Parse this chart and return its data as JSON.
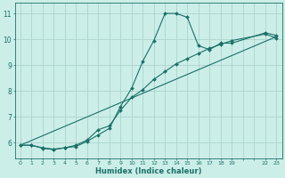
{
  "xlabel": "Humidex (Indice chaleur)",
  "bg_color": "#cceee8",
  "grid_color": "#aad4cc",
  "line_color": "#1a7068",
  "xticks_all": [
    0,
    1,
    2,
    3,
    4,
    5,
    6,
    7,
    8,
    9,
    10,
    11,
    12,
    13,
    14,
    15,
    16,
    17,
    18,
    19,
    20,
    21,
    22,
    23
  ],
  "xtick_labels": [
    "0",
    "1",
    "2",
    "3",
    "4",
    "5",
    "6",
    "7",
    "8",
    "9",
    "10",
    "11",
    "12",
    "13",
    "14",
    "15",
    "16",
    "17",
    "18",
    "19",
    "",
    "",
    "22",
    "23"
  ],
  "yticks": [
    6,
    7,
    8,
    9,
    10,
    11
  ],
  "ylim": [
    5.4,
    11.4
  ],
  "xlim": [
    -0.5,
    23.5
  ],
  "curve1_x": [
    0,
    1,
    2,
    3,
    4,
    5,
    6,
    7,
    8,
    9,
    10,
    11,
    12,
    13,
    14,
    15,
    16,
    17,
    18,
    19,
    22,
    23
  ],
  "curve1_y": [
    5.9,
    5.9,
    5.8,
    5.75,
    5.8,
    5.85,
    6.05,
    6.3,
    6.55,
    7.4,
    8.1,
    9.15,
    9.95,
    11.0,
    11.0,
    10.85,
    9.75,
    9.6,
    9.85,
    9.85,
    10.25,
    10.15
  ],
  "curve2_x": [
    0,
    1,
    2,
    3,
    4,
    5,
    6,
    7,
    8,
    9,
    10,
    11,
    12,
    13,
    14,
    15,
    16,
    17,
    18,
    19,
    22,
    23
  ],
  "curve2_y": [
    5.9,
    5.9,
    5.78,
    5.73,
    5.8,
    5.9,
    6.1,
    6.5,
    6.65,
    7.25,
    7.75,
    8.05,
    8.45,
    8.75,
    9.05,
    9.25,
    9.45,
    9.65,
    9.8,
    9.95,
    10.2,
    10.05
  ],
  "curve3_x": [
    0,
    23
  ],
  "curve3_y": [
    5.9,
    10.1
  ]
}
